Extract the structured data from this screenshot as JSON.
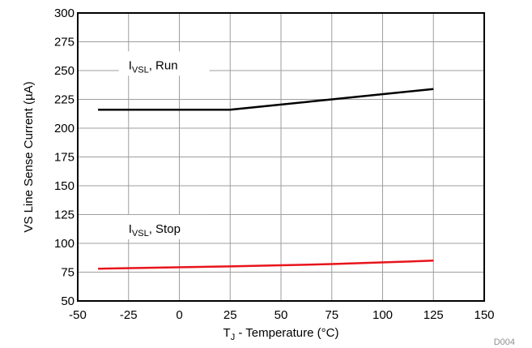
{
  "chart_data": {
    "type": "line",
    "xlabel": {
      "prefix": "T",
      "sub": "J",
      "rest": " - Temperature (°C)"
    },
    "ylabel": "VS Line Sense Current (µA)",
    "xlim": [
      -50,
      150
    ],
    "ylim": [
      50,
      300
    ],
    "xticks": [
      -50,
      -25,
      0,
      25,
      50,
      75,
      100,
      125,
      150
    ],
    "yticks": [
      50,
      75,
      100,
      125,
      150,
      175,
      200,
      225,
      250,
      275,
      300
    ],
    "grid": true,
    "figure_id": "D004",
    "series": [
      {
        "name": "IVSL, Run",
        "color": "#000000",
        "x": [
          -40,
          25,
          75,
          125
        ],
        "y": [
          216,
          216,
          225,
          234
        ]
      },
      {
        "name": "IVSL, Stop",
        "color": "#e8141c",
        "x": [
          -40,
          25,
          75,
          125
        ],
        "y": [
          78,
          80,
          82,
          85
        ]
      }
    ],
    "annotations": [
      {
        "main": "I",
        "sub": "VSL",
        "rest": ", Run",
        "x": -25,
        "y": 254
      },
      {
        "main": "I",
        "sub": "VSL",
        "rest": ", Stop",
        "x": -25,
        "y": 112
      }
    ]
  }
}
